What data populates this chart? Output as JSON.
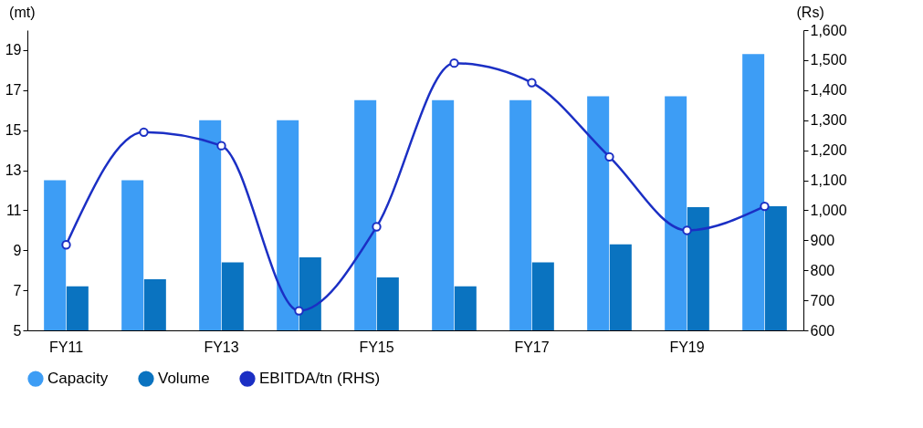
{
  "chart_data": {
    "type": "bar",
    "categories": [
      "FY11",
      null,
      "FY13",
      null,
      "FY15",
      null,
      "FY17",
      null,
      "FY19",
      null
    ],
    "series": [
      {
        "name": "Capacity",
        "color": "#3d9df5",
        "values": [
          12.5,
          12.5,
          15.5,
          15.5,
          16.5,
          16.5,
          16.5,
          16.7,
          16.7,
          18.8
        ]
      },
      {
        "name": "Volume",
        "color": "#0a73c0",
        "values": [
          7.2,
          7.55,
          8.4,
          8.65,
          7.65,
          7.2,
          8.4,
          9.3,
          11.15,
          11.2
        ]
      },
      {
        "name": "EBITDA/tn (RHS)",
        "type": "line",
        "axis": "y2",
        "color": "#1b2fc4",
        "marker": "circle",
        "values": [
          885,
          1260,
          1215,
          665,
          945,
          1490,
          1425,
          1178,
          933,
          1013
        ]
      }
    ],
    "ylabel": "(mt)",
    "y2label": "(Rs)",
    "ylim": [
      5,
      20
    ],
    "yticks": [
      5,
      7,
      9,
      11,
      13,
      15,
      17,
      19
    ],
    "y2lim": [
      600,
      1600
    ],
    "y2ticks": [
      {
        "value": 600,
        "label": "600"
      },
      {
        "value": 700,
        "label": "700"
      },
      {
        "value": 800,
        "label": "800"
      },
      {
        "value": 900,
        "label": "900"
      },
      {
        "value": 1000,
        "label": "1,000"
      },
      {
        "value": 1100,
        "label": "1,100"
      },
      {
        "value": 1200,
        "label": "1,200"
      },
      {
        "value": 1300,
        "label": "1,300"
      },
      {
        "value": 1400,
        "label": "1,400"
      },
      {
        "value": 1500,
        "label": "1,500"
      },
      {
        "value": 1600,
        "label": "1,600"
      }
    ],
    "legend": "bottom",
    "grid": false
  }
}
